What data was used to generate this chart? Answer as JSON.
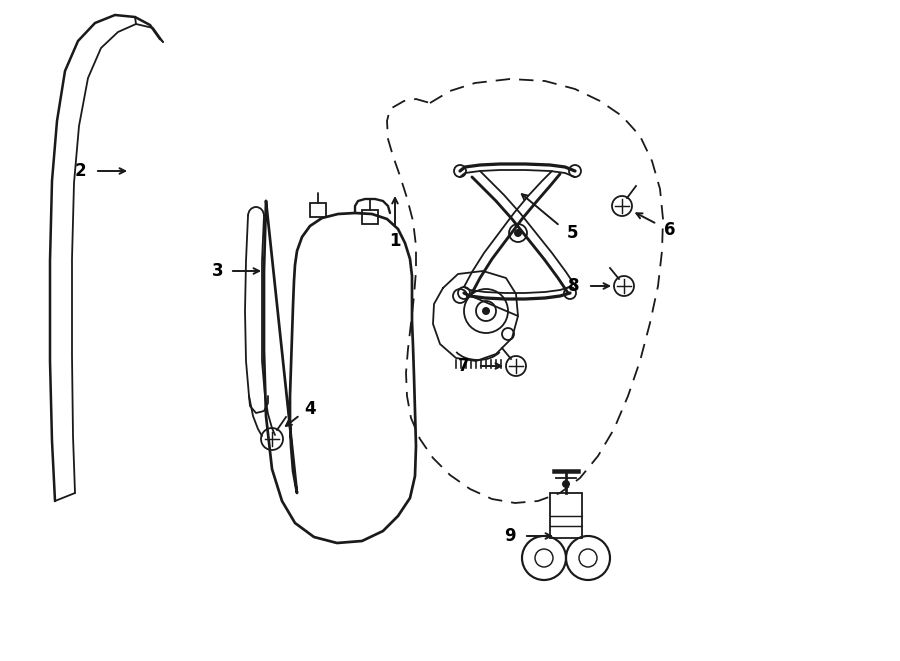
{
  "bg_color": "#ffffff",
  "line_color": "#1a1a1a",
  "lw": 1.3,
  "fig_w": 9.0,
  "fig_h": 6.61,
  "dpi": 100
}
